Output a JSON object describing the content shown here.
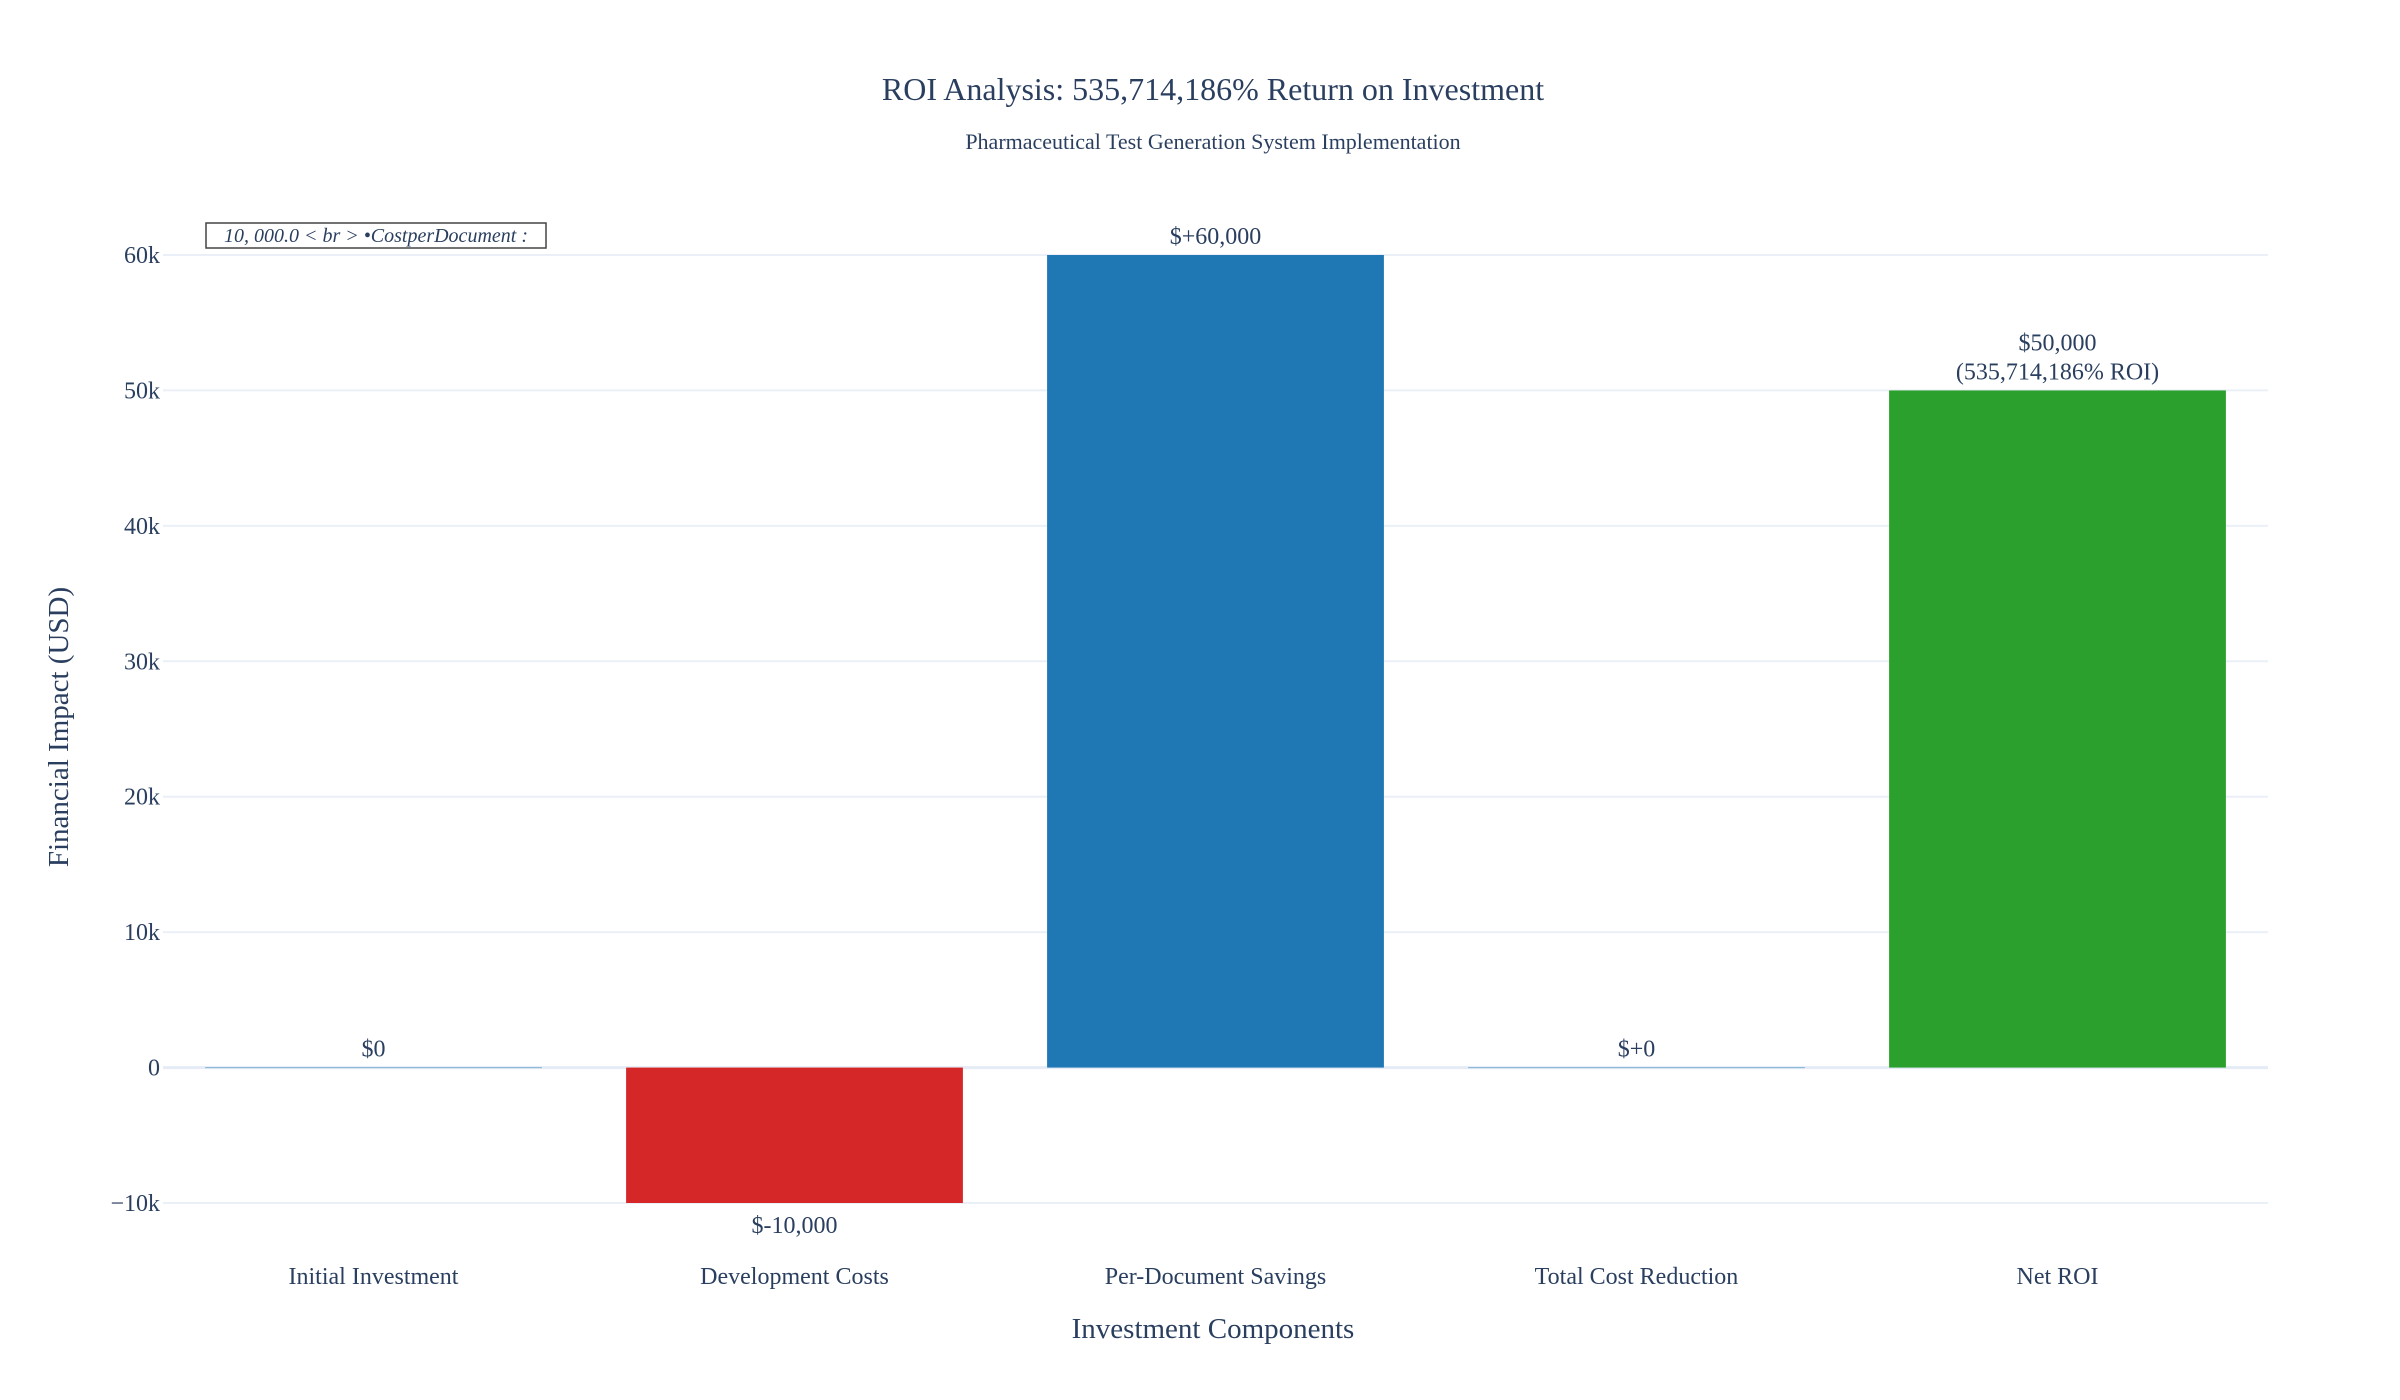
{
  "chart_data": {
    "type": "bar",
    "title": "ROI Analysis: 535,714,186% Return on Investment",
    "subtitle": "Pharmaceutical Test Generation System Implementation",
    "xlabel": "Investment Components",
    "ylabel": "Financial Impact (USD)",
    "categories": [
      "Initial Investment",
      "Development Costs",
      "Per-Document Savings",
      "Total Cost Reduction",
      "Net ROI"
    ],
    "values": [
      0,
      -10000,
      60000,
      0,
      50000
    ],
    "bar_labels": [
      [
        "$0"
      ],
      [
        "$-10,000"
      ],
      [
        "$+60,000"
      ],
      [
        "$+0"
      ],
      [
        "$50,000",
        "(535,714,186% ROI)"
      ]
    ],
    "colors": [
      "#1f77b4",
      "#d62728",
      "#1f77b4",
      "#1f77b4",
      "#2ca02c"
    ],
    "ylim": [
      -10000,
      60000
    ],
    "y_ticks": [
      -10000,
      0,
      10000,
      20000,
      30000,
      40000,
      50000,
      60000
    ],
    "y_tick_labels": [
      "−10k",
      "0",
      "10k",
      "20k",
      "30k",
      "40k",
      "50k",
      "60k"
    ],
    "grid": true,
    "annotation": "10, 000.0 < br > •CostperDocument :"
  }
}
